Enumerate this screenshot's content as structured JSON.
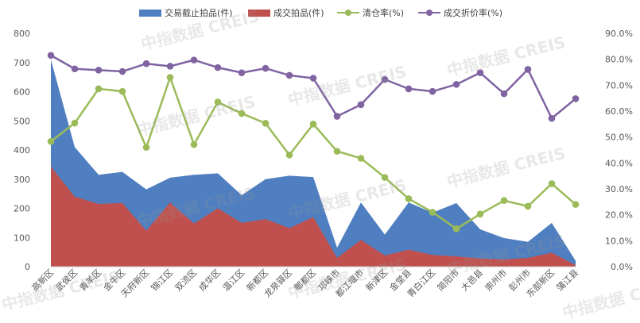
{
  "legend": {
    "area_blue": "交易截止拍品(件)",
    "area_red": "成交拍品(件)",
    "line_green": "清仓率(%)",
    "line_purple": "成交折价率(%)"
  },
  "watermark": "中指数据 CREIS",
  "colors": {
    "area_blue": "#4f7fc0",
    "area_red": "#c0504d",
    "line_green": "#9bbb59",
    "line_purple": "#8064a2",
    "axis_text": "#595959",
    "grid": "#d9d9d9"
  },
  "chart_data": {
    "type": "area",
    "categories": [
      "高新区",
      "武侯区",
      "青羊区",
      "金牛区",
      "天府新区",
      "锦江区",
      "双流区",
      "成华区",
      "温江区",
      "新都区",
      "龙泉驿区",
      "郫都区",
      "邛崃市",
      "都江堰市",
      "新津区",
      "金堂县",
      "青白江区",
      "简阳市",
      "大邑县",
      "崇州市",
      "彭州市",
      "东部新区",
      "蒲江县"
    ],
    "series": [
      {
        "name": "交易截止拍品(件)",
        "kind": "area",
        "axis": "left",
        "values": [
          710,
          410,
          315,
          325,
          265,
          305,
          315,
          320,
          245,
          300,
          312,
          307,
          65,
          220,
          110,
          220,
          185,
          218,
          128,
          98,
          85,
          150,
          20
        ]
      },
      {
        "name": "成交拍品(件)",
        "kind": "area",
        "axis": "left",
        "values": [
          343,
          240,
          215,
          218,
          123,
          220,
          148,
          200,
          150,
          163,
          132,
          170,
          30,
          92,
          38,
          58,
          40,
          35,
          28,
          25,
          30,
          48,
          5
        ]
      },
      {
        "name": "清仓率(%)",
        "kind": "line",
        "axis": "right",
        "values": [
          48.3,
          55.4,
          68.6,
          67.6,
          46.0,
          73.0,
          47.1,
          63.5,
          59.1,
          55.3,
          43.1,
          55.0,
          44.5,
          41.8,
          34.4,
          26.2,
          21.0,
          14.6,
          20.3,
          25.5,
          23.3,
          32.0,
          24.0
        ]
      },
      {
        "name": "成交折价率(%)",
        "kind": "line",
        "axis": "right",
        "values": [
          81.5,
          76.3,
          75.8,
          75.3,
          78.3,
          77.3,
          79.7,
          76.8,
          74.8,
          76.5,
          73.8,
          72.7,
          58.0,
          62.5,
          72.2,
          68.6,
          67.6,
          70.3,
          74.8,
          66.7,
          76.1,
          57.2,
          64.8
        ]
      }
    ],
    "left_axis": {
      "ylim": [
        0,
        800
      ],
      "ticks": [
        "0",
        "100",
        "200",
        "300",
        "400",
        "500",
        "600",
        "700",
        "800"
      ]
    },
    "right_axis": {
      "ylim": [
        0,
        90
      ],
      "ticks": [
        "0.0%",
        "10.0%",
        "20.0%",
        "30.0%",
        "40.0%",
        "50.0%",
        "60.0%",
        "70.0%",
        "80.0%",
        "90.0%"
      ]
    },
    "grid": false,
    "legend_position": "top"
  }
}
